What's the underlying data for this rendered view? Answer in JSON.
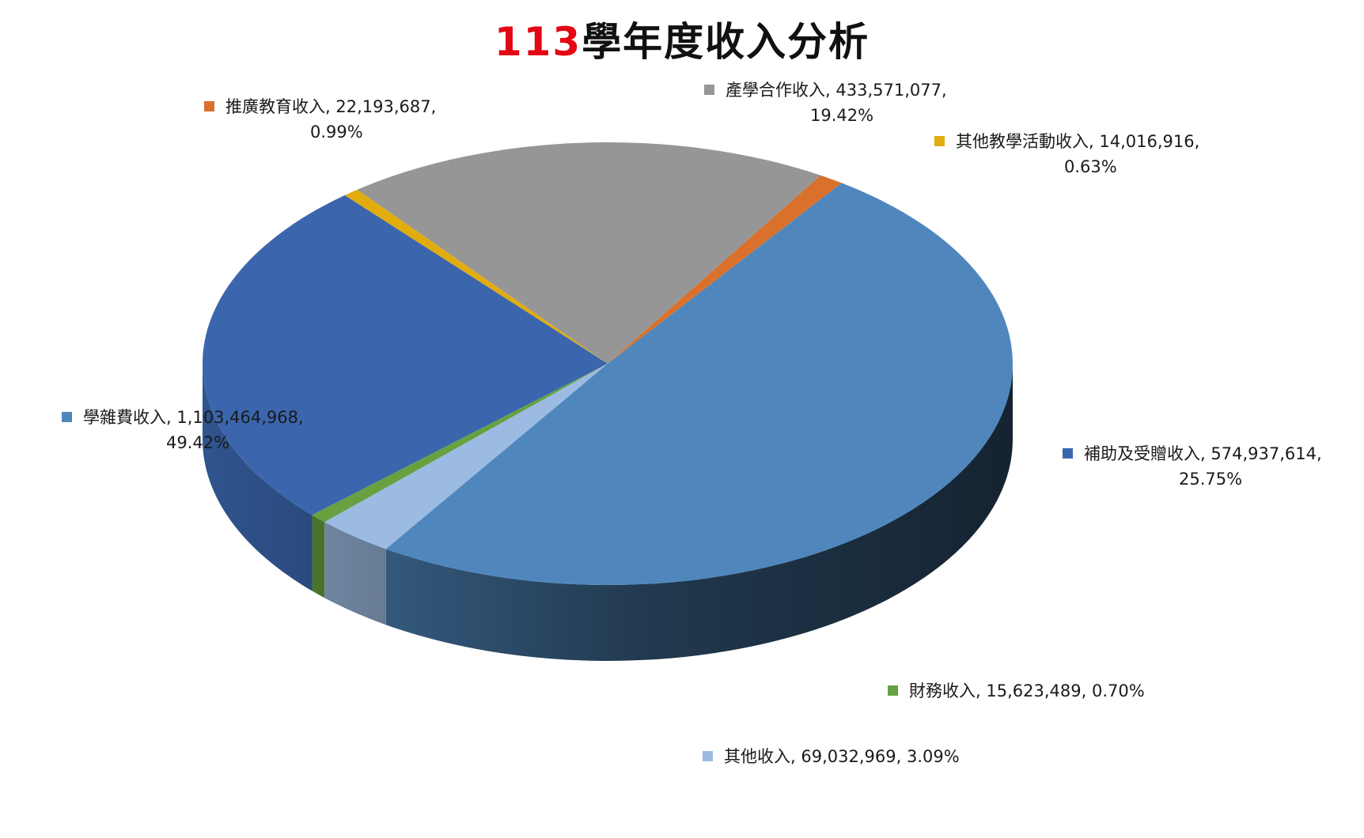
{
  "title": {
    "year": "113",
    "rest": "學年度收入分析"
  },
  "chart_data": {
    "type": "pie",
    "style": "3d",
    "title": "113學年度收入分析",
    "slices": [
      {
        "name": "學雜費收入",
        "value": 1103464968,
        "value_text": "1,103,464,968",
        "percent": "49.42%",
        "color": "#4f87bd"
      },
      {
        "name": "推廣教育收入",
        "value": 22193687,
        "value_text": "22,193,687",
        "percent": "0.99%",
        "color": "#d9712c"
      },
      {
        "name": "產學合作收入",
        "value": 433571077,
        "value_text": "433,571,077",
        "percent": "19.42%",
        "color": "#969696"
      },
      {
        "name": "其他教學活動收入",
        "value": 14016916,
        "value_text": "14,016,916",
        "percent": "0.63%",
        "color": "#e2ac0f"
      },
      {
        "name": "補助及受贈收入",
        "value": 574937614,
        "value_text": "574,937,614",
        "percent": "25.75%",
        "color": "#3b66ad"
      },
      {
        "name": "財務收入",
        "value": 15623489,
        "value_text": "15,623,489",
        "percent": "0.70%",
        "color": "#67a140"
      },
      {
        "name": "其他收入",
        "value": 69032969,
        "value_text": "69,032,969",
        "percent": "3.09%",
        "color": "#9cbbe2"
      }
    ]
  }
}
